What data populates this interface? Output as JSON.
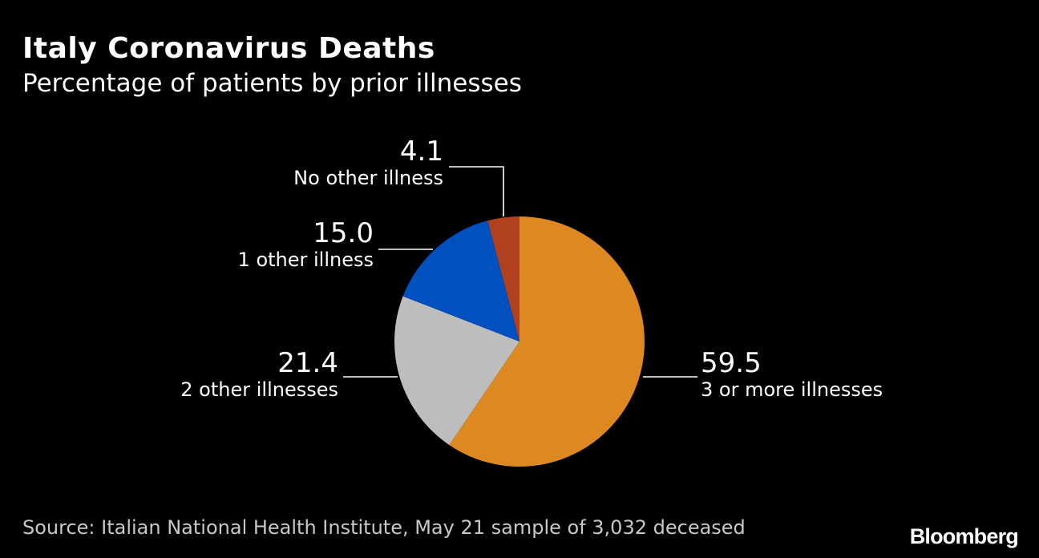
{
  "header": {
    "title": "Italy Coronavirus Deaths",
    "subtitle": "Percentage of patients by prior illnesses"
  },
  "footer": {
    "source": "Source: Italian National Health Institute, May 21 sample of 3,032 deceased",
    "brand": "Bloomberg"
  },
  "chart_data": {
    "type": "pie",
    "title": "Italy Coronavirus Deaths",
    "subtitle": "Percentage of patients by prior illnesses",
    "slices": [
      {
        "label": "3 or more illnesses",
        "value": 59.5,
        "value_label": "59.5",
        "color": "#de8822"
      },
      {
        "label": "2 other illnesses",
        "value": 21.4,
        "value_label": "21.4",
        "color": "#bdbdbd"
      },
      {
        "label": "1 other illness",
        "value": 15.0,
        "value_label": "15.0",
        "color": "#0050bf"
      },
      {
        "label": "No other illness",
        "value": 4.1,
        "value_label": "4.1",
        "color": "#b0401e"
      }
    ],
    "start": "12 o'clock",
    "direction": "clockwise"
  }
}
